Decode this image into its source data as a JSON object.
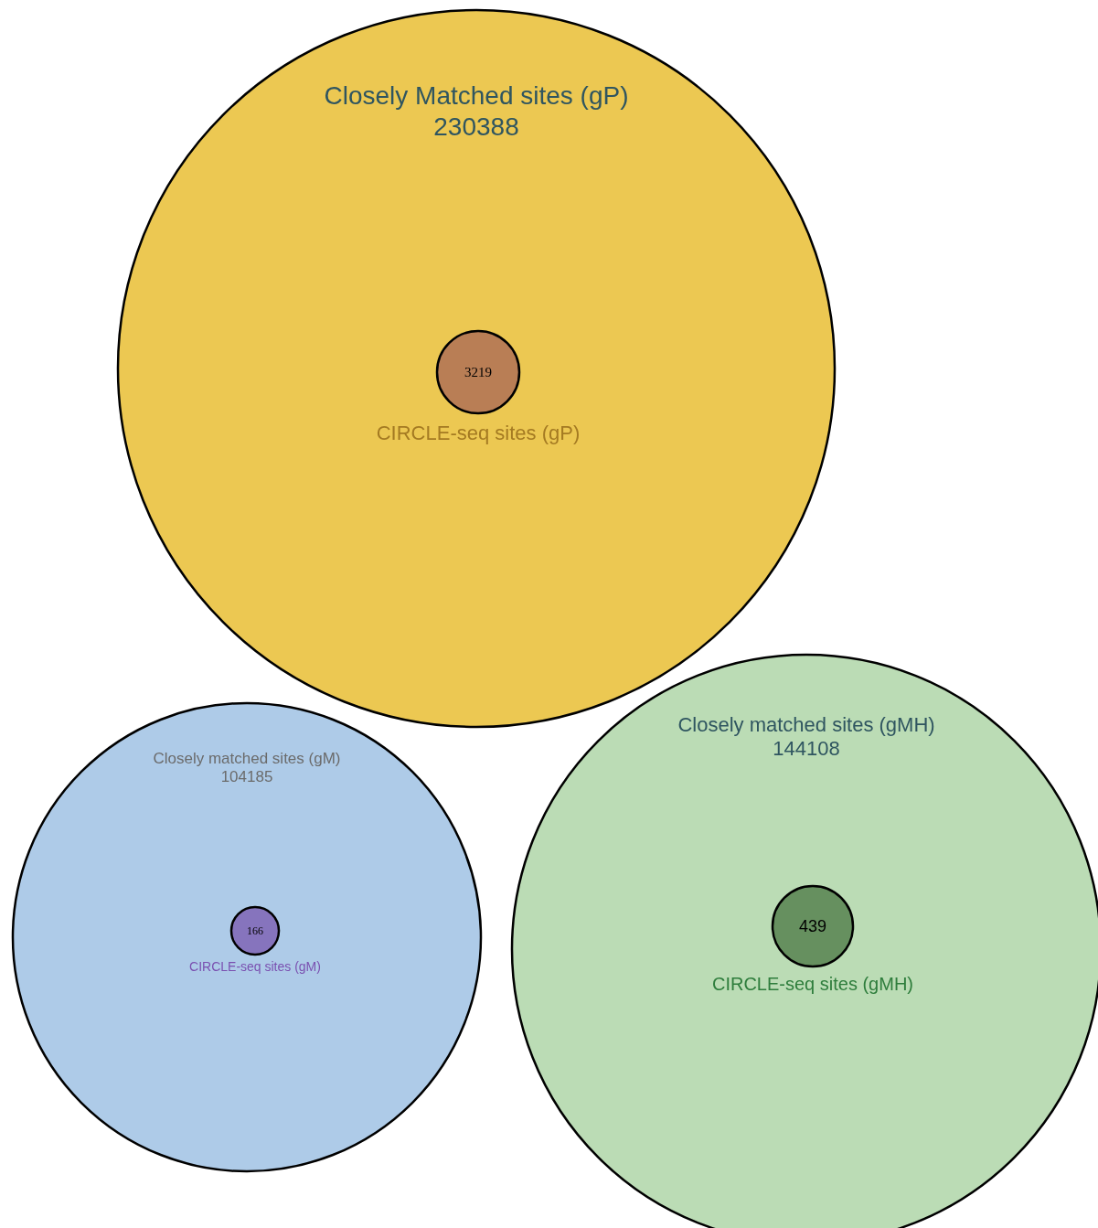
{
  "chart_data": [
    {
      "type": "other",
      "categories": [
        "Closely Matched sites (gP)",
        "CIRCLE-seq sites (gP)"
      ],
      "values": [
        230388,
        3219
      ],
      "colors": [
        "#ecc852",
        "#b97e55"
      ],
      "data_labels": true
    },
    {
      "type": "other",
      "categories": [
        "Closely matched sites (gM)",
        "CIRCLE-seq sites (gM)"
      ],
      "values": [
        104185,
        166
      ],
      "colors": [
        "#aecbe8",
        "#8674bd"
      ],
      "data_labels": true
    },
    {
      "type": "other",
      "categories": [
        "Closely matched sites (gMH)",
        "CIRCLE-seq sites (gMH)"
      ],
      "values": [
        144108,
        439
      ],
      "colors": [
        "#bbdcb5",
        "#66905f"
      ],
      "data_labels": true
    }
  ]
}
